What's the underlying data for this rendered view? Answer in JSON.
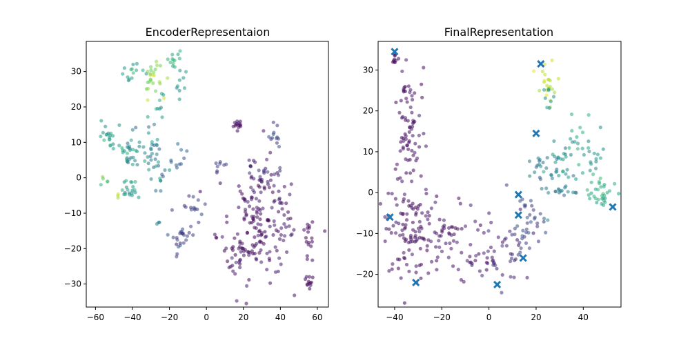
{
  "chart_data": [
    {
      "type": "scatter",
      "title": "EncoderRepresentaion",
      "xlim": [
        -65,
        66
      ],
      "ylim": [
        -36.5,
        38.5
      ],
      "xticks": [
        -60,
        -40,
        -20,
        0,
        20,
        40,
        60
      ],
      "xtick_labels": [
        "−60",
        "−40",
        "−20",
        "0",
        "20",
        "40",
        "60"
      ],
      "yticks": [
        -30,
        -20,
        -10,
        0,
        10,
        20,
        30
      ],
      "ytick_labels": [
        "−30",
        "−20",
        "−10",
        "0",
        "10",
        "20",
        "30"
      ],
      "colormap": "viridis",
      "clusters": [
        {
          "center": [
            17,
            15
          ],
          "spread": [
            1.2,
            1.0
          ],
          "n": 14,
          "c": [
            0.02,
            0.08
          ]
        },
        {
          "center": [
            37,
            12
          ],
          "spread": [
            2.0,
            1.8
          ],
          "n": 12,
          "c": [
            0.15,
            0.25
          ]
        },
        {
          "center": [
            -14,
            27
          ],
          "spread": [
            2.0,
            2.0
          ],
          "n": 9,
          "c": [
            0.45,
            0.6
          ]
        },
        {
          "center": [
            -18,
            34
          ],
          "spread": [
            2.5,
            1.2
          ],
          "n": 12,
          "c": [
            0.55,
            0.7
          ]
        },
        {
          "center": [
            -40,
            29
          ],
          "spread": [
            3.0,
            1.8
          ],
          "n": 14,
          "c": [
            0.45,
            0.7
          ]
        },
        {
          "center": [
            -29,
            28
          ],
          "spread": [
            3.0,
            2.5
          ],
          "n": 25,
          "c": [
            0.75,
            0.95
          ]
        },
        {
          "center": [
            -27,
            20
          ],
          "spread": [
            3.0,
            2.0
          ],
          "n": 8,
          "c": [
            0.45,
            0.65
          ]
        },
        {
          "center": [
            -53,
            11
          ],
          "spread": [
            2.5,
            2.0
          ],
          "n": 18,
          "c": [
            0.45,
            0.65
          ]
        },
        {
          "center": [
            -42,
            8
          ],
          "spread": [
            3.0,
            3.0
          ],
          "n": 30,
          "c": [
            0.35,
            0.65
          ]
        },
        {
          "center": [
            -28,
            6
          ],
          "spread": [
            4.0,
            4.0
          ],
          "n": 40,
          "c": [
            0.3,
            0.6
          ]
        },
        {
          "center": [
            -41,
            -3
          ],
          "spread": [
            2.5,
            2.0
          ],
          "n": 20,
          "c": [
            0.45,
            0.65
          ]
        },
        {
          "center": [
            -15,
            5
          ],
          "spread": [
            2.5,
            3.0
          ],
          "n": 10,
          "c": [
            0.25,
            0.45
          ]
        },
        {
          "center": [
            -15,
            -17
          ],
          "spread": [
            3.0,
            2.0
          ],
          "n": 20,
          "c": [
            0.15,
            0.3
          ]
        },
        {
          "center": [
            -10,
            -9
          ],
          "spread": [
            4.0,
            4.0
          ],
          "n": 18,
          "c": [
            0.1,
            0.25
          ]
        },
        {
          "center": [
            30,
            0
          ],
          "spread": [
            5.0,
            3.0
          ],
          "n": 20,
          "c": [
            0.08,
            0.2
          ]
        },
        {
          "center": [
            28,
            -12
          ],
          "spread": [
            11.0,
            8.0
          ],
          "n": 170,
          "c": [
            0.0,
            0.1
          ]
        },
        {
          "center": [
            17,
            -20
          ],
          "spread": [
            6.0,
            3.0
          ],
          "n": 25,
          "c": [
            0.0,
            0.08
          ]
        },
        {
          "center": [
            13,
            -25
          ],
          "spread": [
            2.0,
            1.2
          ],
          "n": 6,
          "c": [
            0.05,
            0.12
          ]
        },
        {
          "center": [
            55,
            -17
          ],
          "spread": [
            2.0,
            3.0
          ],
          "n": 16,
          "c": [
            0.0,
            0.06
          ]
        },
        {
          "center": [
            55,
            -30
          ],
          "spread": [
            1.5,
            1.2
          ],
          "n": 12,
          "c": [
            0.0,
            0.06
          ]
        },
        {
          "center": [
            8,
            3
          ],
          "spread": [
            2.0,
            1.5
          ],
          "n": 8,
          "c": [
            0.1,
            0.25
          ]
        },
        {
          "center": [
            -55,
            -1
          ],
          "spread": [
            1.2,
            1.0
          ],
          "n": 5,
          "c": [
            0.6,
            0.85
          ]
        },
        {
          "center": [
            -48,
            -5
          ],
          "spread": [
            1.0,
            0.8
          ],
          "n": 3,
          "c": [
            0.85,
            0.95
          ]
        },
        {
          "center": [
            -26,
            -13
          ],
          "spread": [
            0.6,
            0.5
          ],
          "n": 3,
          "c": [
            0.35,
            0.45
          ]
        }
      ]
    },
    {
      "type": "scatter",
      "title": "FinalRepresentation",
      "xlim": [
        -47,
        56
      ],
      "ylim": [
        -28,
        37
      ],
      "xticks": [
        -40,
        -20,
        0,
        20,
        40
      ],
      "xtick_labels": [
        "−40",
        "−20",
        "0",
        "20",
        "40"
      ],
      "yticks": [
        -20,
        -10,
        0,
        10,
        20,
        30
      ],
      "ytick_labels": [
        "−20",
        "−10",
        "0",
        "10",
        "20",
        "30"
      ],
      "colormap": "viridis",
      "clusters": [
        {
          "center": [
            -40,
            33
          ],
          "spread": [
            0.6,
            0.8
          ],
          "n": 10,
          "c": [
            0.0,
            0.06
          ]
        },
        {
          "center": [
            -34,
            14
          ],
          "spread": [
            3.5,
            9.0
          ],
          "n": 90,
          "c": [
            0.0,
            0.08
          ]
        },
        {
          "center": [
            -35,
            -10
          ],
          "spread": [
            5.0,
            6.0
          ],
          "n": 80,
          "c": [
            0.0,
            0.08
          ]
        },
        {
          "center": [
            -18,
            -10
          ],
          "spread": [
            7.0,
            4.0
          ],
          "n": 60,
          "c": [
            0.0,
            0.1
          ]
        },
        {
          "center": [
            -5,
            -17
          ],
          "spread": [
            5.0,
            3.0
          ],
          "n": 25,
          "c": [
            0.0,
            0.12
          ]
        },
        {
          "center": [
            8,
            -14
          ],
          "spread": [
            5.0,
            4.0
          ],
          "n": 40,
          "c": [
            0.05,
            0.2
          ]
        },
        {
          "center": [
            18,
            -8
          ],
          "spread": [
            5.0,
            4.0
          ],
          "n": 30,
          "c": [
            0.15,
            0.3
          ]
        },
        {
          "center": [
            25,
            27
          ],
          "spread": [
            1.8,
            3.0
          ],
          "n": 22,
          "c": [
            0.85,
            0.98
          ]
        },
        {
          "center": [
            26,
            24
          ],
          "spread": [
            1.5,
            1.5
          ],
          "n": 8,
          "c": [
            0.45,
            0.6
          ]
        },
        {
          "center": [
            30,
            5
          ],
          "spread": [
            4.0,
            4.0
          ],
          "n": 35,
          "c": [
            0.35,
            0.6
          ]
        },
        {
          "center": [
            36,
            14
          ],
          "spread": [
            2.0,
            3.0
          ],
          "n": 12,
          "c": [
            0.45,
            0.65
          ]
        },
        {
          "center": [
            44,
            8
          ],
          "spread": [
            3.0,
            4.0
          ],
          "n": 20,
          "c": [
            0.45,
            0.65
          ]
        },
        {
          "center": [
            48,
            0
          ],
          "spread": [
            3.5,
            2.0
          ],
          "n": 30,
          "c": [
            0.55,
            0.7
          ]
        },
        {
          "center": [
            22,
            5
          ],
          "spread": [
            2.0,
            3.0
          ],
          "n": 15,
          "c": [
            0.3,
            0.5
          ]
        },
        {
          "center": [
            32,
            1
          ],
          "spread": [
            3.0,
            1.0
          ],
          "n": 12,
          "c": [
            0.3,
            0.5
          ]
        }
      ],
      "markers": [
        {
          "x": -40,
          "y": 34.5
        },
        {
          "x": 22,
          "y": 31.5
        },
        {
          "x": 20,
          "y": 14.5
        },
        {
          "x": 12.5,
          "y": -0.5
        },
        {
          "x": 12.5,
          "y": -5.5
        },
        {
          "x": 52.5,
          "y": -3.5
        },
        {
          "x": -42,
          "y": -6
        },
        {
          "x": 14.5,
          "y": -16
        },
        {
          "x": -31,
          "y": -22
        },
        {
          "x": 3.5,
          "y": -22.5
        }
      ],
      "marker_color": "#1f77b4"
    }
  ]
}
